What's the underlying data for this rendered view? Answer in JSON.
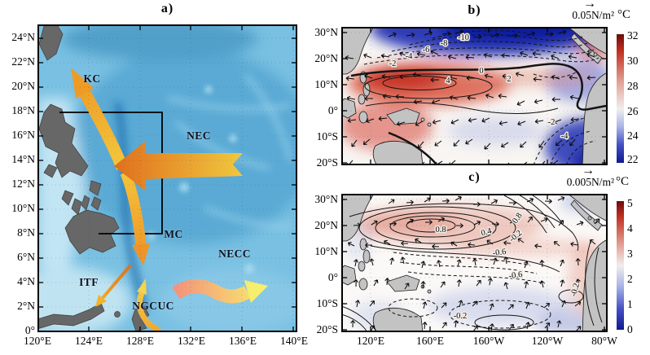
{
  "figure": {
    "panel_a": {
      "title": "a)",
      "y_ticks": [
        "24°N",
        "22°N",
        "20°N",
        "18°N",
        "16°N",
        "14°N",
        "12°N",
        "10°N",
        "8°N",
        "6°N",
        "4°N",
        "2°N",
        "0°"
      ],
      "x_ticks": [
        "120°E",
        "124°E",
        "128°E",
        "132°E",
        "136°E",
        "140°E"
      ],
      "current_labels": {
        "kc": "KC",
        "nec": "NEC",
        "mc": "MC",
        "necc": "NECC",
        "itf": "ITF",
        "ngcuc": "NGCUC"
      }
    },
    "panel_b": {
      "title": "b)",
      "vector_scale_glyph": "→",
      "vector_scale_label": "0.05N/m²",
      "colorbar_unit": "°C",
      "colorbar_ticks": [
        "32",
        "30",
        "28",
        "26",
        "24",
        "22"
      ],
      "y_ticks": [
        "30°N",
        "20°N",
        "10°N",
        "0°",
        "10°S",
        "20°S"
      ],
      "contour_labels": [
        "-10",
        "-8",
        "-6",
        "-4",
        "-2",
        "0",
        "2",
        "4",
        "-2",
        "-4"
      ]
    },
    "panel_c": {
      "title": "c)",
      "vector_scale_glyph": "→",
      "vector_scale_label": "0.005N/m²",
      "colorbar_unit": "°C",
      "colorbar_ticks": [
        "5",
        "4",
        "3",
        "2",
        "1",
        "0"
      ],
      "y_ticks": [
        "30°N",
        "20°N",
        "10°N",
        "0°",
        "10°S",
        "20°S"
      ],
      "x_ticks": [
        "120°E",
        "160°E",
        "160°W",
        "120°W",
        "80°W"
      ],
      "contour_labels": [
        "0.8",
        "0.4",
        "0.8",
        "-0.2",
        "-0.6",
        "-0.6",
        "-0.2",
        "-0.2"
      ]
    },
    "colors": {
      "land_panel_a": "#676767",
      "land_panels_bc": "#c3c3c3",
      "ocean_base": "#79c0e2",
      "trench_blue": "#1e6fae",
      "current_arrow_orange": "#ee9b26",
      "current_arrow_yellow": "#f6d84a",
      "necc_salmon": "#f4937a",
      "warm_fill": "#d84a36",
      "cold_fill": "#1c2eb2",
      "contour_line": "#141414"
    }
  }
}
